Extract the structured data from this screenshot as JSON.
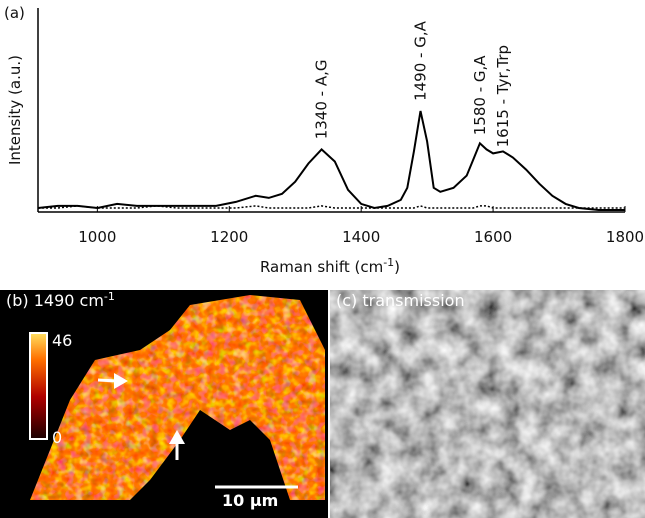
{
  "chart_data": [
    {
      "type": "line",
      "panel_label": "(a)",
      "x_label": [
        "Raman shift (cm",
        "-1",
        ")"
      ],
      "y_label": "Intensity (a.u.)",
      "x": [
        910,
        940,
        970,
        1000,
        1030,
        1060,
        1090,
        1120,
        1150,
        1180,
        1210,
        1240,
        1260,
        1280,
        1300,
        1320,
        1340,
        1360,
        1380,
        1400,
        1420,
        1440,
        1460,
        1470,
        1480,
        1490,
        1500,
        1510,
        1520,
        1540,
        1560,
        1570,
        1580,
        1590,
        1600,
        1615,
        1630,
        1650,
        1670,
        1690,
        1710,
        1730,
        1760,
        1800
      ],
      "series": [
        {
          "color": "#000000",
          "style": "solid",
          "values": [
            0.02,
            0.03,
            0.03,
            0.02,
            0.04,
            0.03,
            0.03,
            0.03,
            0.03,
            0.03,
            0.05,
            0.08,
            0.07,
            0.09,
            0.15,
            0.24,
            0.31,
            0.25,
            0.11,
            0.04,
            0.02,
            0.03,
            0.06,
            0.12,
            0.3,
            0.5,
            0.35,
            0.12,
            0.1,
            0.12,
            0.18,
            0.26,
            0.34,
            0.31,
            0.29,
            0.3,
            0.27,
            0.21,
            0.14,
            0.08,
            0.04,
            0.02,
            0.01,
            0.01
          ]
        },
        {
          "color": "#000000",
          "style": "dotted",
          "values": [
            0.02,
            0.02,
            0.03,
            0.02,
            0.02,
            0.02,
            0.03,
            0.02,
            0.02,
            0.02,
            0.02,
            0.03,
            0.02,
            0.02,
            0.02,
            0.02,
            0.03,
            0.02,
            0.02,
            0.02,
            0.02,
            0.02,
            0.02,
            0.02,
            0.02,
            0.03,
            0.02,
            0.02,
            0.02,
            0.02,
            0.02,
            0.02,
            0.03,
            0.03,
            0.02,
            0.02,
            0.02,
            0.02,
            0.02,
            0.02,
            0.02,
            0.02,
            0.02,
            0.02
          ]
        }
      ],
      "xlim": [
        910,
        1800
      ],
      "ylim": [
        0,
        1
      ],
      "xticks": [
        1000,
        1200,
        1400,
        1600,
        1800
      ],
      "annotations": [
        {
          "text": "1340 - A,G",
          "x": 1340,
          "y": 0.36
        },
        {
          "text": "1490 - G,A",
          "x": 1490,
          "y": 0.55
        },
        {
          "text": "1580 - G,A",
          "x": 1580,
          "y": 0.38
        },
        {
          "text": "1615 - Tyr,Trp",
          "x": 1615,
          "y": 0.32
        }
      ]
    },
    {
      "type": "heatmap",
      "title": [
        "(b) 1490 cm",
        "-1"
      ],
      "colorbar_lim": [
        0,
        46
      ],
      "colorbar_ticks": [
        0,
        46
      ],
      "scale_bar": "10 µm"
    },
    {
      "type": "image",
      "title": "(c) transmission"
    }
  ]
}
